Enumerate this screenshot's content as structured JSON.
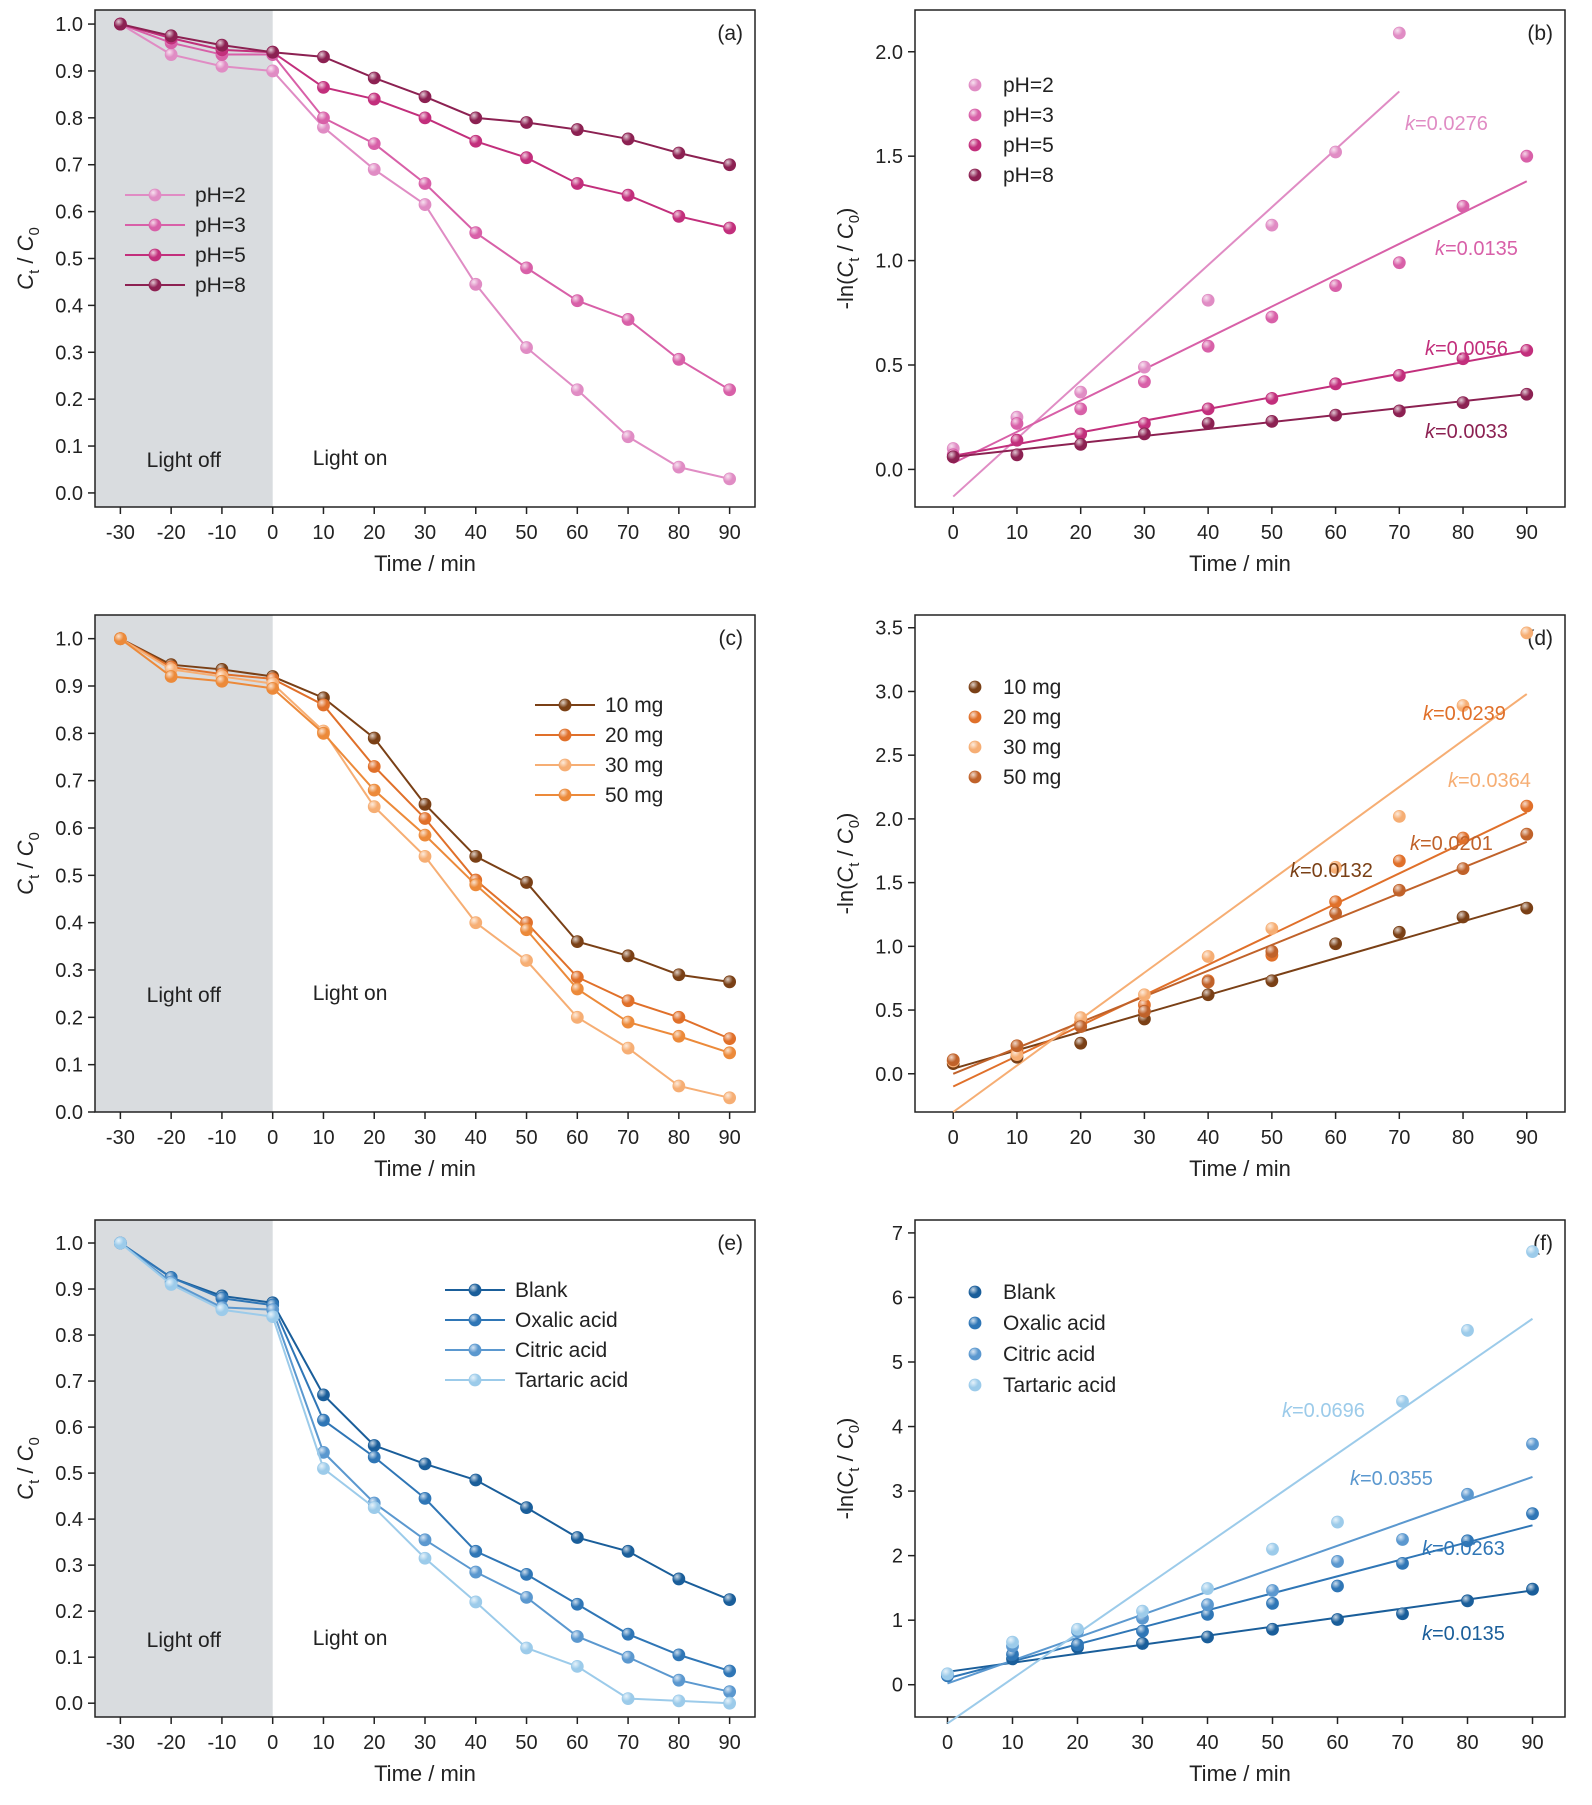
{
  "figure": {
    "panels": [
      {
        "id": "a",
        "label": "(a)",
        "kind": "conc",
        "xlabel": "Time / min",
        "ylabel_main": "C",
        "ylabel_sub1": "t",
        "ylabel_mid": " / C",
        "ylabel_sub2": "0",
        "xlim": [
          -35,
          95
        ],
        "ylim": [
          -0.03,
          1.03
        ],
        "xticks": [
          -30,
          -20,
          -10,
          0,
          10,
          20,
          30,
          40,
          50,
          60,
          70,
          80,
          90
        ],
        "yticks": [
          0.0,
          0.1,
          0.2,
          0.3,
          0.4,
          0.5,
          0.6,
          0.7,
          0.8,
          0.9,
          1.0
        ],
        "ytick_labels": [
          "0.0",
          "0.1",
          "0.2",
          "0.3",
          "0.4",
          "0.5",
          "0.6",
          "0.7",
          "0.8",
          "0.9",
          "1.0"
        ],
        "shade_x": [
          -35,
          0
        ],
        "regime_labels": [
          "Light off",
          "Light on"
        ],
        "legend": "left-middle"
      },
      {
        "id": "b",
        "label": "(b)",
        "kind": "kinetic",
        "xlabel": "Time / min",
        "ylabel_pre": "-ln(",
        "ylabel_main": "C",
        "ylabel_sub1": "t",
        "ylabel_mid": " / C",
        "ylabel_sub2": "0",
        "ylabel_post": ")",
        "xlim": [
          -6,
          96
        ],
        "ylim": [
          -0.18,
          2.2
        ],
        "xticks": [
          0,
          10,
          20,
          30,
          40,
          50,
          60,
          70,
          80,
          90
        ],
        "yticks": [
          0.0,
          0.5,
          1.0,
          1.5,
          2.0
        ],
        "ytick_labels": [
          "0.0",
          "0.5",
          "1.0",
          "1.5",
          "2.0"
        ],
        "legend": "top-left"
      },
      {
        "id": "c",
        "label": "(c)",
        "kind": "conc",
        "xlabel": "Time / min",
        "ylabel_main": "C",
        "ylabel_sub1": "t",
        "ylabel_mid": " / C",
        "ylabel_sub2": "0",
        "xlim": [
          -35,
          95
        ],
        "ylim": [
          0.0,
          1.05
        ],
        "xticks": [
          -30,
          -20,
          -10,
          0,
          10,
          20,
          30,
          40,
          50,
          60,
          70,
          80,
          90
        ],
        "yticks": [
          0.0,
          0.1,
          0.2,
          0.3,
          0.4,
          0.5,
          0.6,
          0.7,
          0.8,
          0.9,
          1.0
        ],
        "ytick_labels": [
          "0.0",
          "0.1",
          "0.2",
          "0.3",
          "0.4",
          "0.5",
          "0.6",
          "0.7",
          "0.8",
          "0.9",
          "1.0"
        ],
        "shade_x": [
          -35,
          0
        ],
        "regime_labels": [
          "Light off",
          "Light on"
        ],
        "legend": "right-upper"
      },
      {
        "id": "d",
        "label": "(d)",
        "kind": "kinetic",
        "xlabel": "Time / min",
        "ylabel_pre": "-ln(",
        "ylabel_main": "C",
        "ylabel_sub1": "t",
        "ylabel_mid": " / C",
        "ylabel_sub2": "0",
        "ylabel_post": ")",
        "xlim": [
          -6,
          96
        ],
        "ylim": [
          -0.3,
          3.6
        ],
        "xticks": [
          0,
          10,
          20,
          30,
          40,
          50,
          60,
          70,
          80,
          90
        ],
        "yticks": [
          0.0,
          0.5,
          1.0,
          1.5,
          2.0,
          2.5,
          3.0,
          3.5
        ],
        "ytick_labels": [
          "0.0",
          "0.5",
          "1.0",
          "1.5",
          "2.0",
          "2.5",
          "3.0",
          "3.5"
        ],
        "legend": "top-left"
      },
      {
        "id": "e",
        "label": "(e)",
        "kind": "conc",
        "xlabel": "Time / min",
        "ylabel_main": "C",
        "ylabel_sub1": "t",
        "ylabel_mid": " / C",
        "ylabel_sub2": "0",
        "xlim": [
          -35,
          95
        ],
        "ylim": [
          -0.03,
          1.05
        ],
        "xticks": [
          -30,
          -20,
          -10,
          0,
          10,
          20,
          30,
          40,
          50,
          60,
          70,
          80,
          90
        ],
        "yticks": [
          0.0,
          0.1,
          0.2,
          0.3,
          0.4,
          0.5,
          0.6,
          0.7,
          0.8,
          0.9,
          1.0
        ],
        "ytick_labels": [
          "0.0",
          "0.1",
          "0.2",
          "0.3",
          "0.4",
          "0.5",
          "0.6",
          "0.7",
          "0.8",
          "0.9",
          "1.0"
        ],
        "shade_x": [
          -35,
          0
        ],
        "regime_labels": [
          "Light off",
          "Light on"
        ],
        "legend": "right-upper"
      },
      {
        "id": "f",
        "label": "(f)",
        "kind": "kinetic",
        "xlabel": "Time / min",
        "ylabel_pre": "-ln(",
        "ylabel_main": "C",
        "ylabel_sub1": "t",
        "ylabel_mid": " / C",
        "ylabel_sub2": "0",
        "ylabel_post": ")",
        "xlim": [
          -5,
          95
        ],
        "ylim": [
          -0.5,
          7.2
        ],
        "xticks": [
          0,
          10,
          20,
          30,
          40,
          50,
          60,
          70,
          80,
          90
        ],
        "yticks": [
          0,
          1,
          2,
          3,
          4,
          5,
          6,
          7
        ],
        "ytick_labels": [
          "0",
          "1",
          "2",
          "3",
          "4",
          "5",
          "6",
          "7"
        ],
        "legend": "top-left"
      }
    ]
  },
  "chart_data": [
    {
      "panel": "a",
      "type": "line",
      "x": [
        -30,
        -20,
        -10,
        0,
        10,
        20,
        30,
        40,
        50,
        60,
        70,
        80,
        90
      ],
      "series": [
        {
          "name": "pH=2",
          "color": "#e08cc4",
          "values": [
            1.0,
            0.935,
            0.91,
            0.9,
            0.78,
            0.69,
            0.615,
            0.445,
            0.31,
            0.22,
            0.12,
            0.055,
            0.03
          ]
        },
        {
          "name": "pH=3",
          "color": "#d860a8",
          "values": [
            1.0,
            0.96,
            0.935,
            0.935,
            0.8,
            0.745,
            0.66,
            0.555,
            0.48,
            0.41,
            0.37,
            0.285,
            0.22
          ]
        },
        {
          "name": "pH=5",
          "color": "#c22f7c",
          "values": [
            1.0,
            0.97,
            0.945,
            0.94,
            0.865,
            0.84,
            0.8,
            0.75,
            0.715,
            0.66,
            0.635,
            0.59,
            0.565
          ]
        },
        {
          "name": "pH=8",
          "color": "#8c2152",
          "values": [
            1.0,
            0.975,
            0.955,
            0.94,
            0.93,
            0.885,
            0.845,
            0.8,
            0.79,
            0.775,
            0.755,
            0.725,
            0.7
          ]
        }
      ]
    },
    {
      "panel": "b",
      "type": "scatter",
      "x": [
        0,
        10,
        20,
        30,
        40,
        50,
        60,
        70,
        80,
        90
      ],
      "series": [
        {
          "name": "pH=2",
          "color": "#e08cc4",
          "k_label": "0.0276",
          "fit": [
            -0.13,
            1.81
          ],
          "fit_x": [
            0,
            70
          ],
          "values": [
            0.1,
            0.25,
            0.37,
            0.49,
            0.81,
            1.17,
            1.52,
            2.09,
            null,
            null
          ]
        },
        {
          "name": "pH=3",
          "color": "#d860a8",
          "k_label": "0.0135",
          "fit": [
            0.03,
            1.38
          ],
          "fit_x": [
            0,
            90
          ],
          "values": [
            0.07,
            0.22,
            0.29,
            0.42,
            0.59,
            0.73,
            0.88,
            0.99,
            1.26,
            1.5
          ]
        },
        {
          "name": "pH=5",
          "color": "#c22f7c",
          "k_label": "0.0056",
          "fit": [
            0.065,
            0.57
          ],
          "fit_x": [
            0,
            90
          ],
          "values": [
            0.06,
            0.14,
            0.17,
            0.22,
            0.29,
            0.34,
            0.41,
            0.45,
            0.53,
            0.57
          ]
        },
        {
          "name": "pH=8",
          "color": "#8c2152",
          "k_label": "0.0033",
          "fit": [
            0.06,
            0.36
          ],
          "fit_x": [
            0,
            90
          ],
          "values": [
            0.06,
            0.07,
            0.12,
            0.17,
            0.22,
            0.23,
            0.26,
            0.28,
            0.32,
            0.36
          ]
        }
      ]
    },
    {
      "panel": "c",
      "type": "line",
      "x": [
        -30,
        -20,
        -10,
        0,
        10,
        20,
        30,
        40,
        50,
        60,
        70,
        80,
        90
      ],
      "series": [
        {
          "name": "10 mg",
          "color": "#7a4016",
          "values": [
            1.0,
            0.945,
            0.935,
            0.92,
            0.875,
            0.79,
            0.65,
            0.54,
            0.485,
            0.36,
            0.33,
            0.29,
            0.275
          ]
        },
        {
          "name": "20 mg",
          "color": "#e0702a",
          "values": [
            1.0,
            0.94,
            0.925,
            0.915,
            0.86,
            0.73,
            0.62,
            0.49,
            0.4,
            0.285,
            0.235,
            0.2,
            0.155
          ]
        },
        {
          "name": "30 mg",
          "color": "#f6ae74",
          "values": [
            1.0,
            0.935,
            0.92,
            0.905,
            0.805,
            0.645,
            0.54,
            0.4,
            0.32,
            0.2,
            0.135,
            0.055,
            0.03
          ]
        },
        {
          "name": "50 mg",
          "color": "#ec8a3a",
          "values": [
            1.0,
            0.92,
            0.91,
            0.895,
            0.8,
            0.68,
            0.585,
            0.48,
            0.385,
            0.26,
            0.19,
            0.16,
            0.125
          ]
        }
      ]
    },
    {
      "panel": "d",
      "type": "scatter",
      "x": [
        0,
        10,
        20,
        30,
        40,
        50,
        60,
        70,
        80,
        90
      ],
      "series": [
        {
          "name": "10 mg",
          "color": "#7a4016",
          "k_label": "0.0132",
          "fit": [
            0.04,
            1.34
          ],
          "fit_x": [
            0,
            90
          ],
          "values": [
            0.08,
            0.13,
            0.24,
            0.43,
            0.62,
            0.73,
            1.02,
            1.11,
            1.23,
            1.3
          ]
        },
        {
          "name": "20 mg",
          "color": "#e0702a",
          "k_label": "0.0239",
          "fit": [
            -0.1,
            2.05
          ],
          "fit_x": [
            0,
            90
          ],
          "values": [
            0.1,
            0.18,
            0.4,
            0.54,
            0.73,
            0.93,
            1.35,
            1.67,
            1.85,
            2.1
          ]
        },
        {
          "name": "30 mg",
          "color": "#f6ae74",
          "k_label": "0.0364",
          "fit": [
            -0.3,
            2.98
          ],
          "fit_x": [
            0,
            90
          ],
          "values": [
            0.1,
            0.15,
            0.44,
            0.62,
            0.92,
            1.14,
            1.62,
            2.02,
            2.89,
            3.46
          ]
        },
        {
          "name": "50 mg",
          "color": "#c0622a",
          "k_label": "0.0201",
          "fit": [
            0.0,
            1.82
          ],
          "fit_x": [
            0,
            90
          ],
          "values": [
            0.11,
            0.22,
            0.37,
            0.49,
            0.72,
            0.96,
            1.26,
            1.44,
            1.61,
            1.88
          ]
        }
      ]
    },
    {
      "panel": "e",
      "type": "line",
      "x": [
        -30,
        -20,
        -10,
        0,
        10,
        20,
        30,
        40,
        50,
        60,
        70,
        80,
        90
      ],
      "series": [
        {
          "name": "Blank",
          "color": "#1a5e9a",
          "values": [
            1.0,
            0.925,
            0.885,
            0.87,
            0.67,
            0.56,
            0.52,
            0.485,
            0.425,
            0.36,
            0.33,
            0.27,
            0.225
          ]
        },
        {
          "name": "Oxalic acid",
          "color": "#2f76b6",
          "values": [
            1.0,
            0.925,
            0.88,
            0.865,
            0.615,
            0.535,
            0.445,
            0.33,
            0.28,
            0.215,
            0.15,
            0.105,
            0.07
          ]
        },
        {
          "name": "Citric acid",
          "color": "#5b98cf",
          "values": [
            1.0,
            0.915,
            0.86,
            0.855,
            0.545,
            0.435,
            0.355,
            0.285,
            0.23,
            0.145,
            0.1,
            0.05,
            0.025
          ]
        },
        {
          "name": "Tartaric acid",
          "color": "#9ccbea",
          "values": [
            1.0,
            0.91,
            0.855,
            0.84,
            0.51,
            0.425,
            0.315,
            0.22,
            0.12,
            0.08,
            0.01,
            0.005,
            0.0
          ]
        }
      ]
    },
    {
      "panel": "f",
      "type": "scatter",
      "x": [
        0,
        10,
        20,
        30,
        40,
        50,
        60,
        70,
        80,
        90
      ],
      "series": [
        {
          "name": "Blank",
          "color": "#1a5e9a",
          "k_label": "0.0135",
          "fit": [
            0.2,
            1.46
          ],
          "fit_x": [
            0,
            90
          ],
          "values": [
            0.14,
            0.4,
            0.58,
            0.64,
            0.74,
            0.86,
            1.01,
            1.1,
            1.3,
            1.48
          ]
        },
        {
          "name": "Oxalic acid",
          "color": "#2f76b6",
          "k_label": "0.0263",
          "fit": [
            0.1,
            2.47
          ],
          "fit_x": [
            0,
            90
          ],
          "values": [
            0.14,
            0.47,
            0.62,
            0.83,
            1.09,
            1.26,
            1.53,
            1.88,
            2.23,
            2.65
          ]
        },
        {
          "name": "Citric acid",
          "color": "#5b98cf",
          "k_label": "0.0355",
          "fit": [
            0.02,
            3.22
          ],
          "fit_x": [
            0,
            90
          ],
          "values": [
            0.16,
            0.6,
            0.83,
            1.03,
            1.24,
            1.46,
            1.91,
            2.25,
            2.95,
            3.73
          ]
        },
        {
          "name": "Tartaric acid",
          "color": "#9ccbea",
          "k_label": "0.0696",
          "fit": [
            -0.6,
            5.67
          ],
          "fit_x": [
            0,
            90
          ],
          "values": [
            0.17,
            0.66,
            0.86,
            1.14,
            1.49,
            2.1,
            2.52,
            4.39,
            5.49,
            6.71
          ]
        }
      ]
    }
  ]
}
